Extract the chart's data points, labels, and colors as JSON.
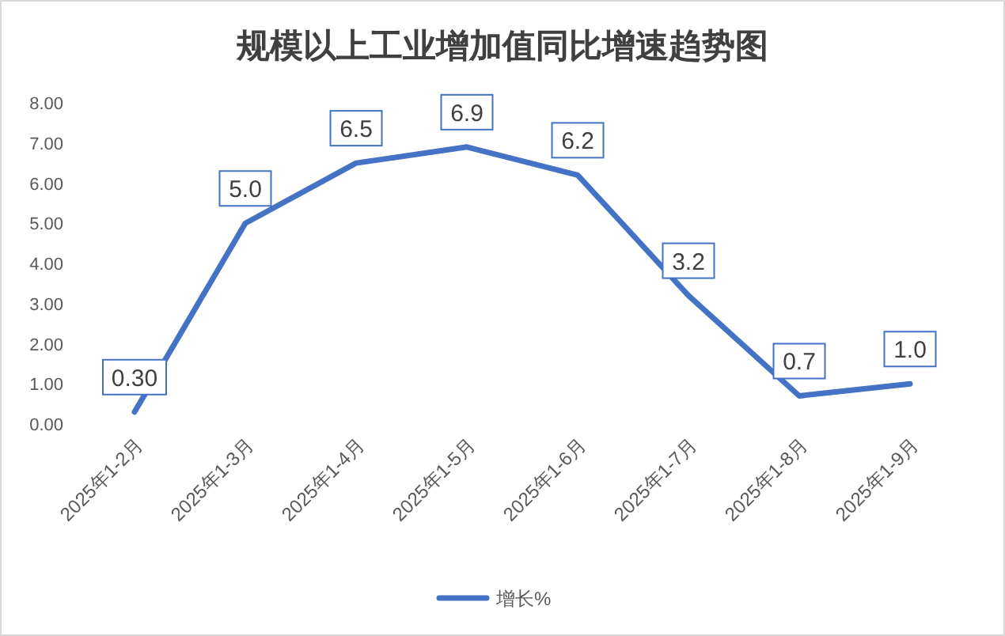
{
  "chart_data": {
    "type": "line",
    "title": "规模以上工业增加值同比增速趋势图",
    "categories": [
      "2025年1-2月",
      "2025年1-3月",
      "2025年1-4月",
      "2025年1-5月",
      "2025年1-6月",
      "2025年1-7月",
      "2025年1-8月",
      "2025年1-9月"
    ],
    "series": [
      {
        "name": "增长%",
        "color": "#4472c4",
        "values": [
          0.3,
          5.0,
          6.5,
          6.9,
          6.2,
          3.2,
          0.7,
          1.0
        ],
        "value_labels": [
          "0.30",
          "5.0",
          "6.5",
          "6.9",
          "6.2",
          "3.2",
          "0.7",
          "1.0"
        ]
      }
    ],
    "ylim": [
      0,
      8
    ],
    "yticks": [
      {
        "value": 0,
        "label": "0.00"
      },
      {
        "value": 1,
        "label": "1.00"
      },
      {
        "value": 2,
        "label": "2.00"
      },
      {
        "value": 3,
        "label": "3.00"
      },
      {
        "value": 4,
        "label": "4.00"
      },
      {
        "value": 5,
        "label": "5.00"
      },
      {
        "value": 6,
        "label": "6.00"
      },
      {
        "value": 7,
        "label": "7.00"
      },
      {
        "value": 8,
        "label": "8.00"
      }
    ],
    "grid": false,
    "legend": "bottom",
    "marker": "none",
    "line_style": "solid"
  }
}
